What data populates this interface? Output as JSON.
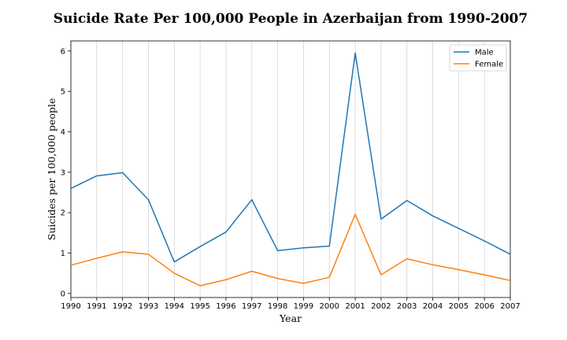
{
  "chart_data": {
    "type": "line",
    "title": "Suicide Rate Per 100,000 People in Azerbaijan from 1990-2007",
    "xlabel": "Year",
    "ylabel": "Suicides per 100,000 people",
    "x": [
      1990,
      1991,
      1992,
      1993,
      1994,
      1995,
      1996,
      1997,
      1998,
      1999,
      2000,
      2001,
      2002,
      2003,
      2004,
      2005,
      2006,
      2007
    ],
    "x_tick_labels": [
      "1990",
      "1991",
      "1992",
      "1993",
      "1994",
      "1995",
      "1996",
      "1997",
      "1998",
      "1999",
      "2000",
      "2001",
      "2002",
      "2003",
      "2004",
      "2005",
      "2006",
      "2007"
    ],
    "y_tick_labels": [
      "0",
      "1",
      "2",
      "3",
      "4",
      "5",
      "6"
    ],
    "y_ticks": [
      0,
      1,
      2,
      3,
      4,
      5,
      6
    ],
    "xlim": [
      1990,
      2007
    ],
    "ylim": [
      -0.1,
      6.25
    ],
    "grid": "vertical",
    "legend": "top-right",
    "series": [
      {
        "name": "Male",
        "color": "#1f77b4",
        "values": [
          2.6,
          2.91,
          2.99,
          2.32,
          0.78,
          1.16,
          1.52,
          2.32,
          1.06,
          1.13,
          1.17,
          5.95,
          1.84,
          2.3,
          1.92,
          1.61,
          1.3,
          0.97
        ]
      },
      {
        "name": "Female",
        "color": "#ff7f0e",
        "values": [
          0.7,
          0.87,
          1.03,
          0.97,
          0.5,
          0.19,
          0.34,
          0.55,
          0.37,
          0.25,
          0.4,
          1.96,
          0.46,
          0.86,
          0.71,
          0.59,
          0.46,
          0.32
        ]
      }
    ]
  }
}
